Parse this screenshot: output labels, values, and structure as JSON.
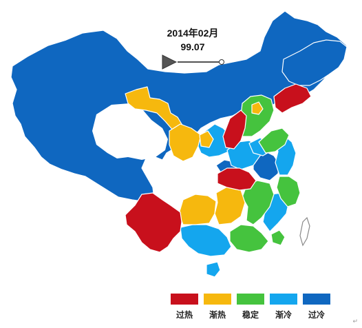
{
  "title": {
    "date": "2014年02月",
    "value": "99.07"
  },
  "timeline": {
    "progress": 1.0
  },
  "legend": {
    "items": [
      {
        "label": "过热",
        "color": "#c8101c"
      },
      {
        "label": "渐热",
        "color": "#f6b80e"
      },
      {
        "label": "稳定",
        "color": "#45c33e"
      },
      {
        "label": "渐冷",
        "color": "#14a6ee"
      },
      {
        "label": "过冷",
        "color": "#0f67c0"
      }
    ]
  },
  "corner_mark": "↵",
  "colors": {
    "overheat": "#c8101c",
    "warming": "#f6b80e",
    "stable": "#45c33e",
    "cooling": "#14a6ee",
    "overcool": "#0f67c0",
    "border": "#ffffff"
  }
}
